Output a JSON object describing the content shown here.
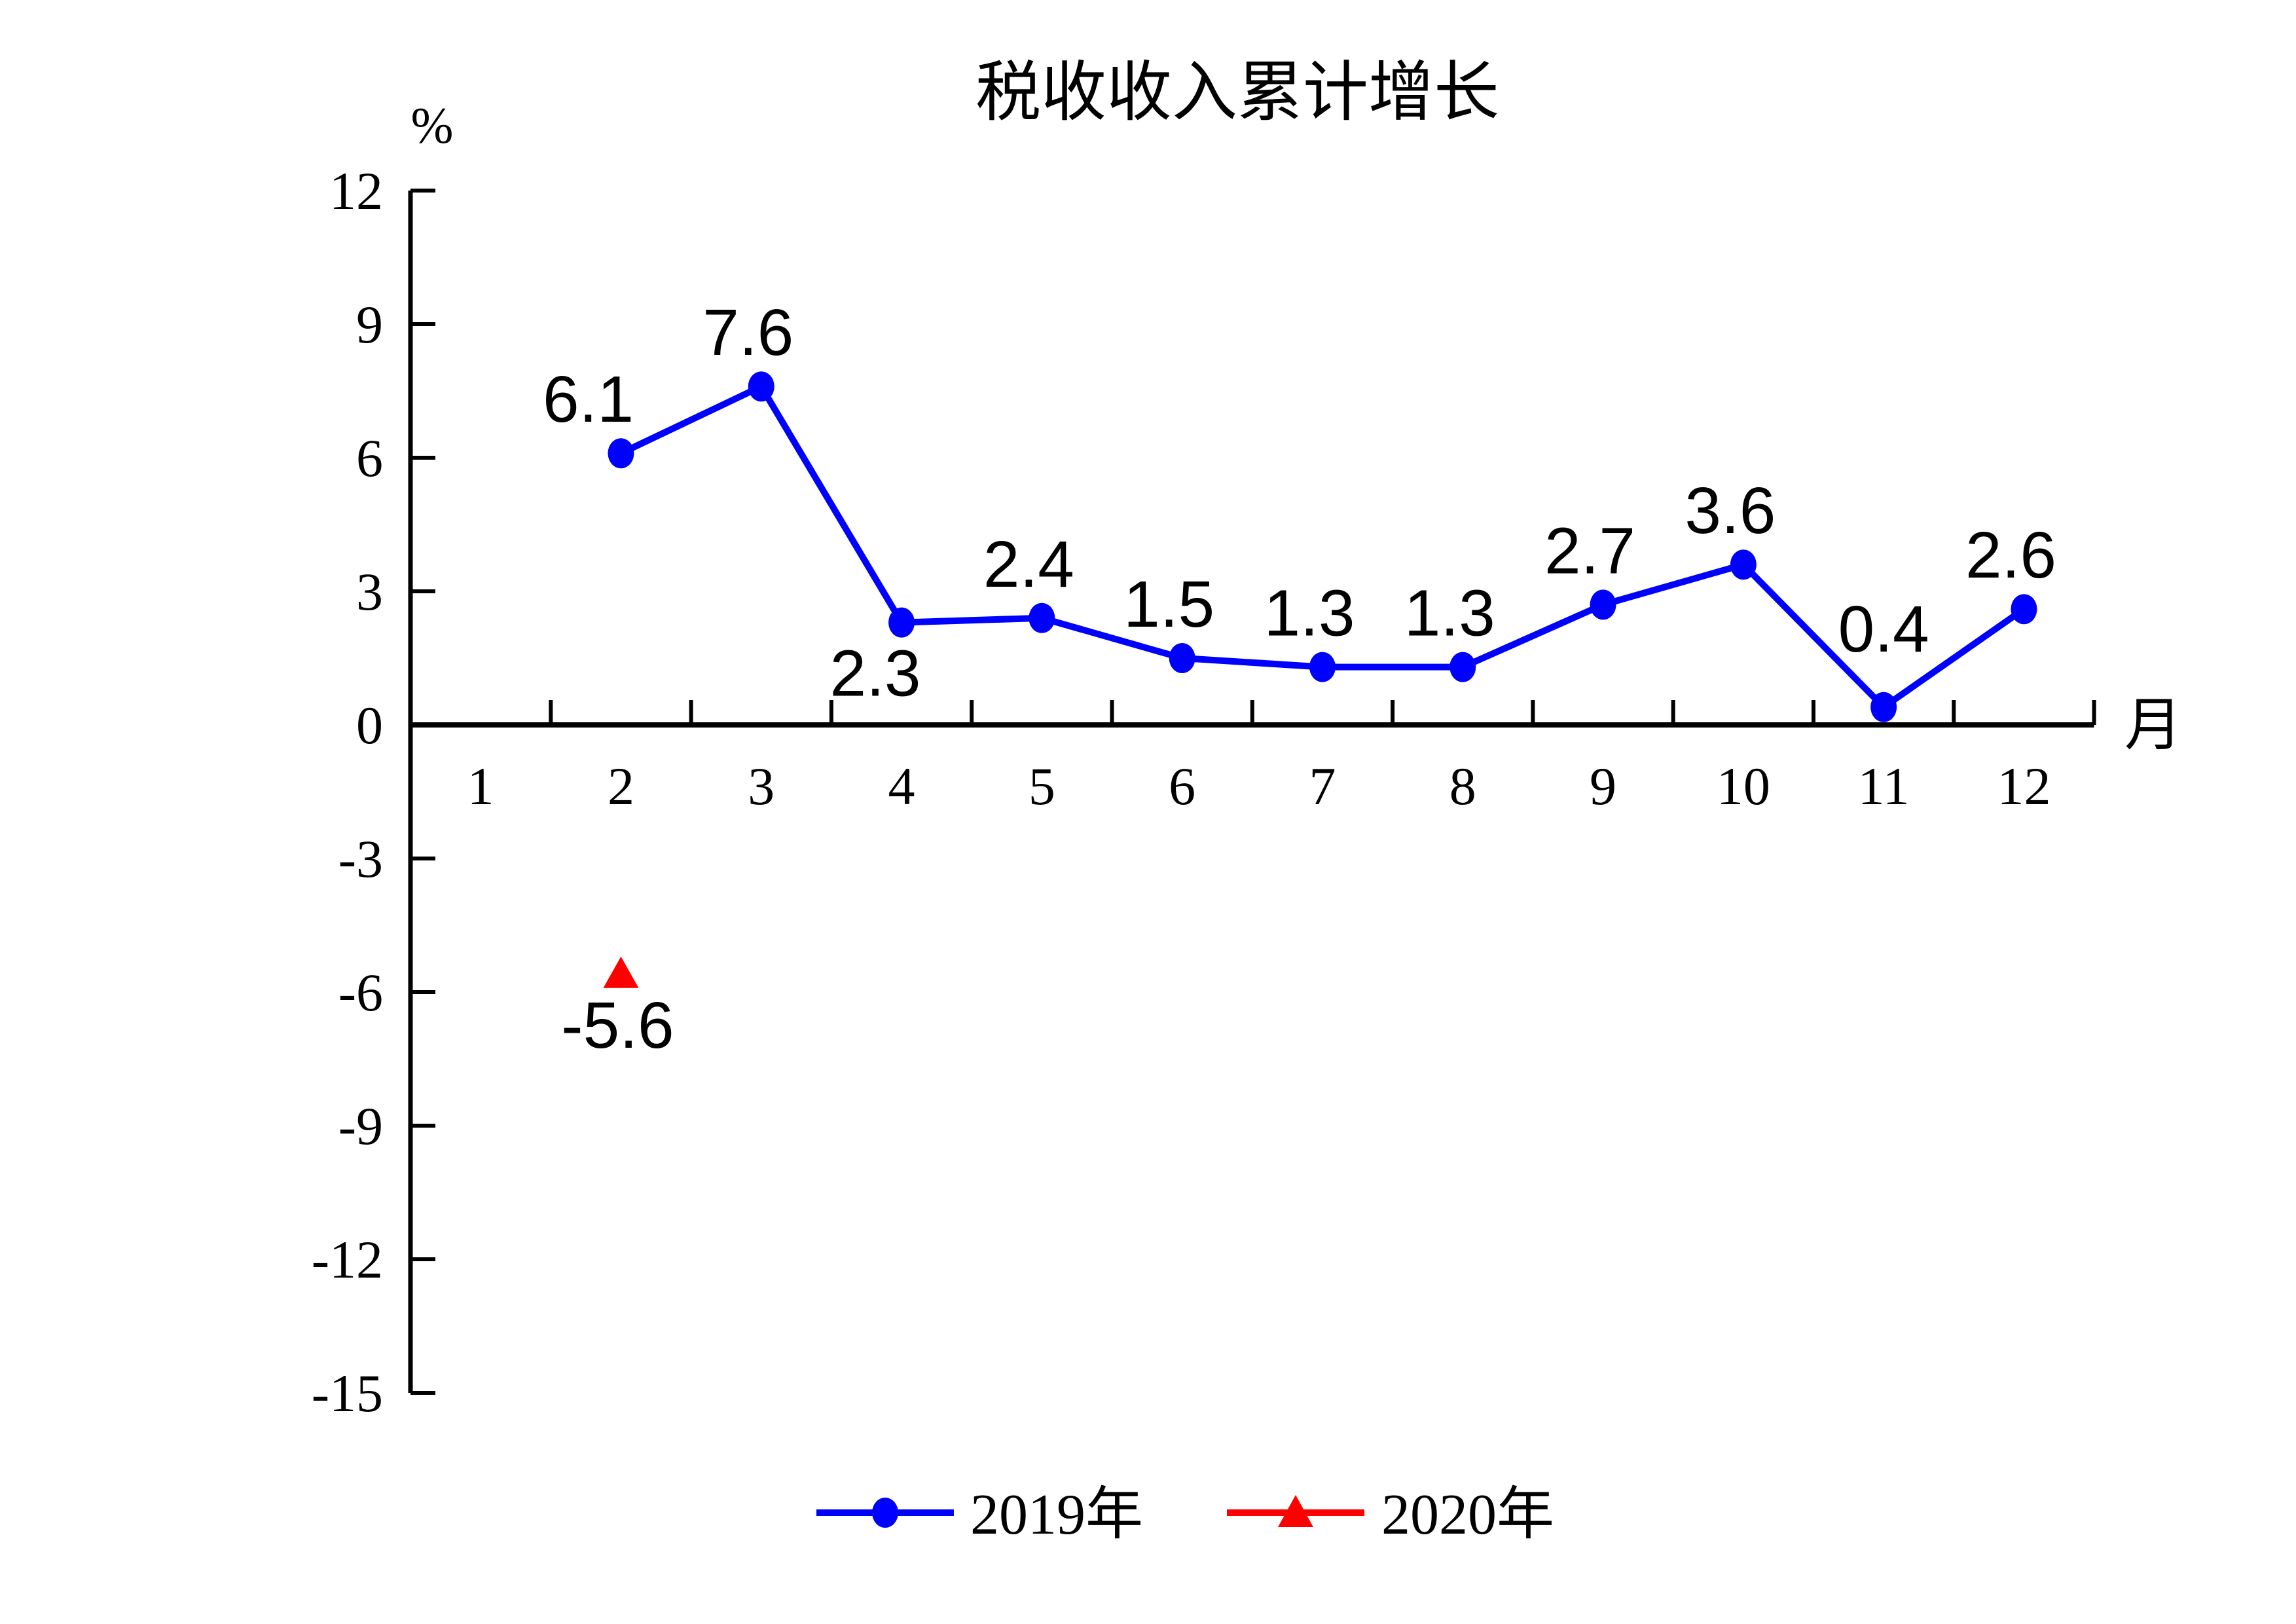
{
  "chart_data": {
    "type": "line",
    "title": "税收收入累计增长",
    "y_axis_unit": "%",
    "x_axis_unit": "月",
    "x_categories": [
      "1",
      "2",
      "3",
      "4",
      "5",
      "6",
      "7",
      "8",
      "9",
      "10",
      "11",
      "12"
    ],
    "y_ticks": [
      "12",
      "9",
      "6",
      "3",
      "0",
      "-3",
      "-6",
      "-9",
      "-12",
      "-15"
    ],
    "ylim": [
      -15,
      12
    ],
    "y_tick_step": 3,
    "grid": false,
    "legend_position": "bottom",
    "axis_color": "#000000",
    "background_color": "#FFFFFF",
    "series": [
      {
        "name": "2019年",
        "color": "#0000FF",
        "marker": "circle",
        "points": [
          {
            "month": 2,
            "value": 6.1,
            "label": "6.1",
            "label_position": "above"
          },
          {
            "month": 3,
            "value": 7.6,
            "label": "7.6",
            "label_position": "above"
          },
          {
            "month": 4,
            "value": 2.3,
            "label": "2.3",
            "label_position": "below"
          },
          {
            "month": 5,
            "value": 2.4,
            "label": "2.4",
            "label_position": "above"
          },
          {
            "month": 6,
            "value": 1.5,
            "label": "1.5",
            "label_position": "above"
          },
          {
            "month": 7,
            "value": 1.3,
            "label": "1.3",
            "label_position": "above"
          },
          {
            "month": 8,
            "value": 1.3,
            "label": "1.3",
            "label_position": "above"
          },
          {
            "month": 9,
            "value": 2.7,
            "label": "2.7",
            "label_position": "above"
          },
          {
            "month": 10,
            "value": 3.6,
            "label": "3.6",
            "label_position": "above"
          },
          {
            "month": 11,
            "value": 0.4,
            "label": "0.4",
            "label_position": "above-high"
          },
          {
            "month": 12,
            "value": 2.6,
            "label": "2.6",
            "label_position": "above"
          }
        ]
      },
      {
        "name": "2020年",
        "color": "#FF0000",
        "marker": "triangle",
        "points": [
          {
            "month": 2,
            "value": -5.6,
            "label": "-5.6",
            "label_position": "below"
          }
        ]
      }
    ]
  }
}
